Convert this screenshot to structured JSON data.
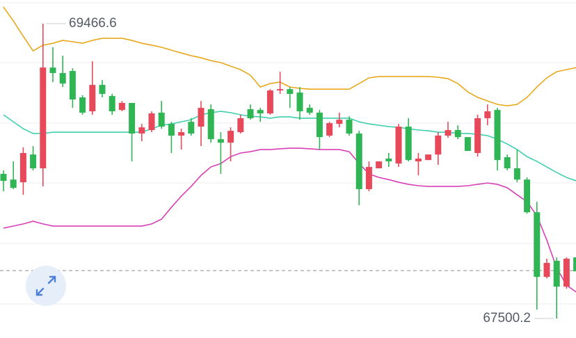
{
  "chart_data": {
    "type": "candlestick",
    "ylim": [
      67370.4,
      69624.3
    ],
    "up_color": "#e8495a",
    "down_color": "#2fb553",
    "max_price": 69466.6,
    "min_price": 67500.2,
    "price_line": 67820,
    "open": [
      68465,
      68427,
      68409,
      68594,
      68502,
      69174,
      69137,
      69151,
      68975,
      68882,
      69058,
      68984,
      68891,
      68938,
      68734,
      68757,
      68873,
      68798,
      68720,
      68812,
      68780,
      68896,
      68696,
      68673,
      68743,
      68896,
      68891,
      68868,
      69021,
      69030,
      69007,
      68905,
      68873,
      68720,
      68798,
      68826,
      68734,
      68363,
      68502,
      68567,
      68534,
      68780,
      68548,
      68557,
      68594,
      68720,
      68757,
      68710,
      68604,
      68836,
      68891,
      68576,
      68502,
      68427,
      68209,
      67778,
      67885,
      67713,
      67908
    ],
    "high": [
      68488,
      68548,
      68641,
      68650,
      69466.6,
      69309,
      69253,
      69169,
      68989,
      69216,
      69091,
      68998,
      68951,
      68938,
      68798,
      68882,
      68951,
      68812,
      68766,
      68836,
      68951,
      68928,
      68743,
      68775,
      68859,
      68928,
      68905,
      69030,
      69146,
      69044,
      69044,
      68928,
      68891,
      68812,
      68873,
      68849,
      68752,
      68548,
      68548,
      68604,
      68798,
      68836,
      68604,
      68594,
      68743,
      68812,
      68789,
      68710,
      68859,
      68928,
      68905,
      68594,
      68627,
      68441,
      68279,
      67899,
      67908,
      67908,
      67908
    ],
    "low": [
      68349,
      68363,
      68325,
      68488,
      68381,
      69077,
      69044,
      68905,
      68859,
      68859,
      68975,
      68859,
      68882,
      68548,
      68683,
      68743,
      68766,
      68604,
      68627,
      68720,
      68650,
      68673,
      68465,
      68548,
      68734,
      68826,
      68812,
      68859,
      68998,
      68905,
      68826,
      68859,
      68627,
      68710,
      68775,
      68720,
      68256,
      68349,
      68502,
      68511,
      68511,
      68548,
      68455,
      68557,
      68525,
      68706,
      68696,
      68618,
      68580,
      68789,
      68488,
      68488,
      68409,
      68200,
      67560,
      67768,
      67500.2,
      67699,
      67815
    ],
    "close": [
      68418,
      68372,
      68604,
      68502,
      69174,
      69137,
      69067,
      68961,
      68873,
      69058,
      68998,
      68882,
      68938,
      68734,
      68775,
      68868,
      68780,
      68720,
      68743,
      68734,
      68905,
      68696,
      68673,
      68752,
      68836,
      68836,
      68868,
      69021,
      69030,
      68998,
      68882,
      68873,
      68710,
      68803,
      68826,
      68734,
      68363,
      68511,
      68548,
      68548,
      68780,
      68557,
      68567,
      68594,
      68720,
      68757,
      68710,
      68618,
      68836,
      68882,
      68557,
      68502,
      68427,
      68209,
      67778,
      67871,
      67713,
      67899,
      67815
    ],
    "lines": [
      {
        "color": "#e9a81c",
        "values": [
          69578,
          69485,
          69383,
          69285,
          69323,
          69336,
          69355,
          69346,
          69336,
          69355,
          69369,
          69369,
          69369,
          69355,
          69336,
          69323,
          69309,
          69290,
          69271,
          69253,
          69239,
          69220,
          69207,
          69183,
          69160,
          69123,
          69044,
          69067,
          69077,
          69044,
          69035,
          69030,
          69030,
          69030,
          69030,
          69030,
          69067,
          69105,
          69114,
          69114,
          69114,
          69114,
          69114,
          69114,
          69109,
          69100,
          69067,
          69012,
          68975,
          68951,
          68928,
          68919,
          68928,
          68975,
          69044,
          69105,
          69146,
          69160,
          69174
        ]
      },
      {
        "color": "#3fcfae",
        "values": [
          68859,
          68812,
          68766,
          68734,
          68734,
          68743,
          68743,
          68743,
          68743,
          68743,
          68743,
          68743,
          68743,
          68743,
          68743,
          68766,
          68789,
          68798,
          68812,
          68826,
          68859,
          68873,
          68882,
          68873,
          68859,
          68849,
          68845,
          68836,
          68845,
          68845,
          68836,
          68836,
          68836,
          68836,
          68836,
          68836,
          68812,
          68798,
          68789,
          68780,
          68775,
          68766,
          68757,
          68752,
          68743,
          68743,
          68734,
          68734,
          68729,
          68720,
          68696,
          68664,
          68627,
          68580,
          68548,
          68511,
          68474,
          68441,
          68418
        ]
      },
      {
        "color": "#d83fb6",
        "values": [
          68103,
          68117,
          68131,
          68149,
          68131,
          68117,
          68117,
          68117,
          68117,
          68117,
          68117,
          68117,
          68117,
          68117,
          68117,
          68131,
          68163,
          68242,
          68316,
          68381,
          68455,
          68511,
          68534,
          68580,
          68604,
          68613,
          68627,
          68627,
          68632,
          68636,
          68636,
          68632,
          68627,
          68627,
          68627,
          68613,
          68534,
          68465,
          68441,
          68427,
          68409,
          68395,
          68386,
          68381,
          68381,
          68381,
          68381,
          68386,
          68395,
          68404,
          68395,
          68372,
          68325,
          68279,
          68186,
          68024,
          67838,
          67722,
          67676
        ]
      }
    ]
  }
}
